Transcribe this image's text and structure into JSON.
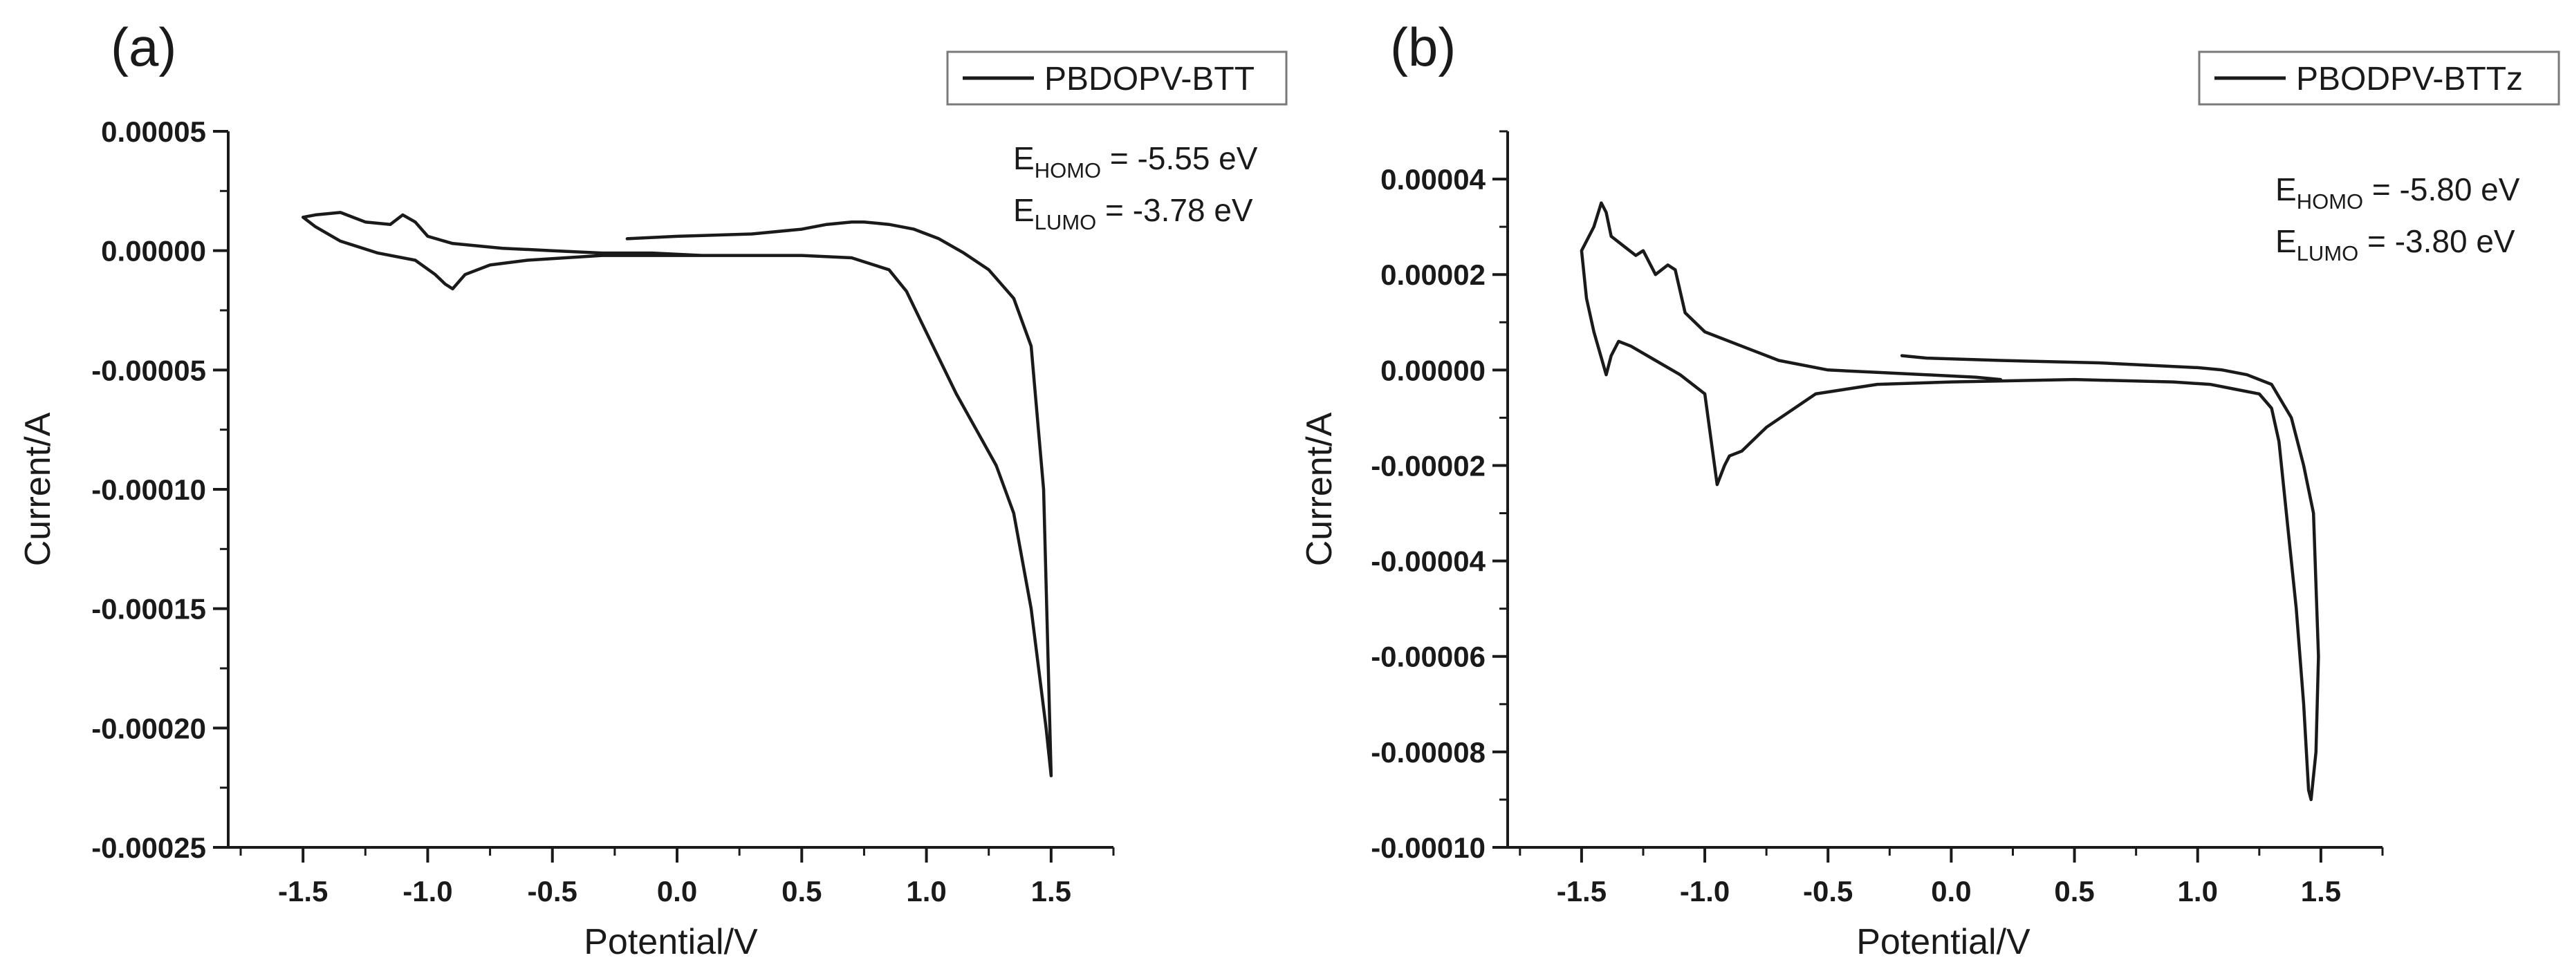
{
  "colors": {
    "background": "#ffffff",
    "ink": "#1a1a1a"
  },
  "chart_data": [
    {
      "type": "line",
      "panel_label": "(a)",
      "title": "",
      "xlabel": "Potential/V",
      "ylabel": "Current/A",
      "xlim": [
        -1.8,
        1.75
      ],
      "ylim": [
        -0.00025,
        5e-05
      ],
      "x_ticks": [
        -1.5,
        -1.0,
        -0.5,
        0.0,
        0.5,
        1.0,
        1.5
      ],
      "x_tick_labels": [
        "-1.5",
        "-1.0",
        "-0.5",
        "0.0",
        "0.5",
        "1.0",
        "1.5"
      ],
      "y_ticks": [
        5e-05,
        0.0,
        -5e-05,
        -0.0001,
        -0.00015,
        -0.0002,
        -0.00025
      ],
      "y_tick_labels": [
        "0.00005",
        "0.00000",
        "-0.00005",
        "-0.00010",
        "-0.00015",
        "-0.00020",
        "-0.00025"
      ],
      "legend": {
        "position": "top-right",
        "entries": [
          "PBDOPV-BTT"
        ]
      },
      "annotations": [
        {
          "main": "E",
          "sub": "HOMO",
          "value": " = -5.55 eV"
        },
        {
          "main": "E",
          "sub": "LUMO",
          "value": " = -3.78 eV"
        }
      ],
      "series": [
        {
          "name": "PBDOPV-BTT",
          "x": [
            -0.2,
            0.0,
            0.3,
            0.5,
            0.6,
            0.7,
            0.75,
            0.85,
            0.95,
            1.05,
            1.15,
            1.25,
            1.35,
            1.42,
            1.47,
            1.5,
            1.48,
            1.42,
            1.35,
            1.28,
            1.2,
            1.12,
            1.05,
            0.98,
            0.92,
            0.85,
            0.7,
            0.5,
            0.2,
            0.0,
            -0.3,
            -0.6,
            -0.75,
            -0.85,
            -0.9,
            -0.93,
            -0.97,
            -1.05,
            -1.2,
            -1.35,
            -1.45,
            -1.5,
            -1.45,
            -1.35,
            -1.25,
            -1.15,
            -1.1,
            -1.05,
            -1.0,
            -0.9,
            -0.7,
            -0.5,
            -0.3,
            -0.1,
            0.1,
            0.2
          ],
          "y": [
            5e-06,
            6e-06,
            7e-06,
            9e-06,
            1.1e-05,
            1.2e-05,
            1.2e-05,
            1.1e-05,
            9e-06,
            5e-06,
            -1e-06,
            -8e-06,
            -2e-05,
            -4e-05,
            -0.0001,
            -0.00022,
            -0.0002,
            -0.00015,
            -0.00011,
            -9e-05,
            -7.5e-05,
            -6e-05,
            -4.5e-05,
            -3e-05,
            -1.7e-05,
            -8e-06,
            -3e-06,
            -2e-06,
            -2e-06,
            -2e-06,
            -2e-06,
            -4e-06,
            -6e-06,
            -1e-05,
            -1.6e-05,
            -1.4e-05,
            -1e-05,
            -4e-06,
            -1e-06,
            4e-06,
            1e-05,
            1.4e-05,
            1.5e-05,
            1.6e-05,
            1.2e-05,
            1.1e-05,
            1.5e-05,
            1.2e-05,
            6e-06,
            3e-06,
            1e-06,
            0.0,
            -1e-06,
            -1e-06,
            -2e-06,
            -2e-06
          ]
        }
      ]
    },
    {
      "type": "line",
      "panel_label": "(b)",
      "title": "",
      "xlabel": "Potential/V",
      "ylabel": "Current/A",
      "xlim": [
        -1.8,
        1.75
      ],
      "ylim": [
        -0.0001,
        5e-05
      ],
      "x_ticks": [
        -1.5,
        -1.0,
        -0.5,
        0.0,
        0.5,
        1.0,
        1.5
      ],
      "x_tick_labels": [
        "-1.5",
        "-1.0",
        "-0.5",
        "0.0",
        "0.5",
        "1.0",
        "1.5"
      ],
      "y_ticks": [
        4e-05,
        2e-05,
        0.0,
        -2e-05,
        -4e-05,
        -6e-05,
        -8e-05,
        -0.0001
      ],
      "y_tick_labels": [
        "0.00004",
        "0.00002",
        "0.00000",
        "-0.00002",
        "-0.00004",
        "-0.00006",
        "-0.00008",
        "-0.00010"
      ],
      "legend": {
        "position": "top-right",
        "entries": [
          "PBODPV-BTTz"
        ]
      },
      "annotations": [
        {
          "main": "E",
          "sub": "HOMO",
          "value": " = -5.80 eV"
        },
        {
          "main": "E",
          "sub": "LUMO",
          "value": " = -3.80 eV"
        }
      ],
      "series": [
        {
          "name": "PBODPV-BTTz",
          "x": [
            -0.2,
            -0.1,
            0.2,
            0.6,
            1.0,
            1.1,
            1.2,
            1.3,
            1.38,
            1.43,
            1.47,
            1.49,
            1.48,
            1.46,
            1.45,
            1.43,
            1.4,
            1.36,
            1.33,
            1.3,
            1.25,
            1.15,
            1.05,
            0.9,
            0.5,
            0.0,
            -0.3,
            -0.55,
            -0.75,
            -0.85,
            -0.9,
            -0.92,
            -0.95,
            -1.0,
            -1.1,
            -1.2,
            -1.3,
            -1.35,
            -1.38,
            -1.4,
            -1.45,
            -1.48,
            -1.5,
            -1.48,
            -1.45,
            -1.42,
            -1.4,
            -1.38,
            -1.33,
            -1.28,
            -1.25,
            -1.2,
            -1.15,
            -1.12,
            -1.08,
            -1.0,
            -0.85,
            -0.7,
            -0.5,
            -0.3,
            -0.1,
            0.1,
            0.2
          ],
          "y": [
            3e-06,
            2.5e-06,
            2e-06,
            1.5e-06,
            5e-07,
            0.0,
            -1e-06,
            -3e-06,
            -1e-05,
            -2e-05,
            -3e-05,
            -6e-05,
            -8e-05,
            -9e-05,
            -8.8e-05,
            -7e-05,
            -5e-05,
            -3e-05,
            -1.5e-05,
            -8e-06,
            -5e-06,
            -4e-06,
            -3e-06,
            -2.5e-06,
            -2e-06,
            -2.5e-06,
            -3e-06,
            -5e-06,
            -1.2e-05,
            -1.7e-05,
            -1.8e-05,
            -2e-05,
            -2.4e-05,
            -5e-06,
            -1e-06,
            2e-06,
            5e-06,
            6e-06,
            3e-06,
            -1e-06,
            8e-06,
            1.5e-05,
            2.5e-05,
            2.7e-05,
            3e-05,
            3.5e-05,
            3.3e-05,
            2.8e-05,
            2.6e-05,
            2.4e-05,
            2.5e-05,
            2e-05,
            2.2e-05,
            2.1e-05,
            1.2e-05,
            8e-06,
            5e-06,
            2e-06,
            0.0,
            -5e-07,
            -1e-06,
            -1.5e-06,
            -2e-06
          ]
        }
      ]
    }
  ]
}
